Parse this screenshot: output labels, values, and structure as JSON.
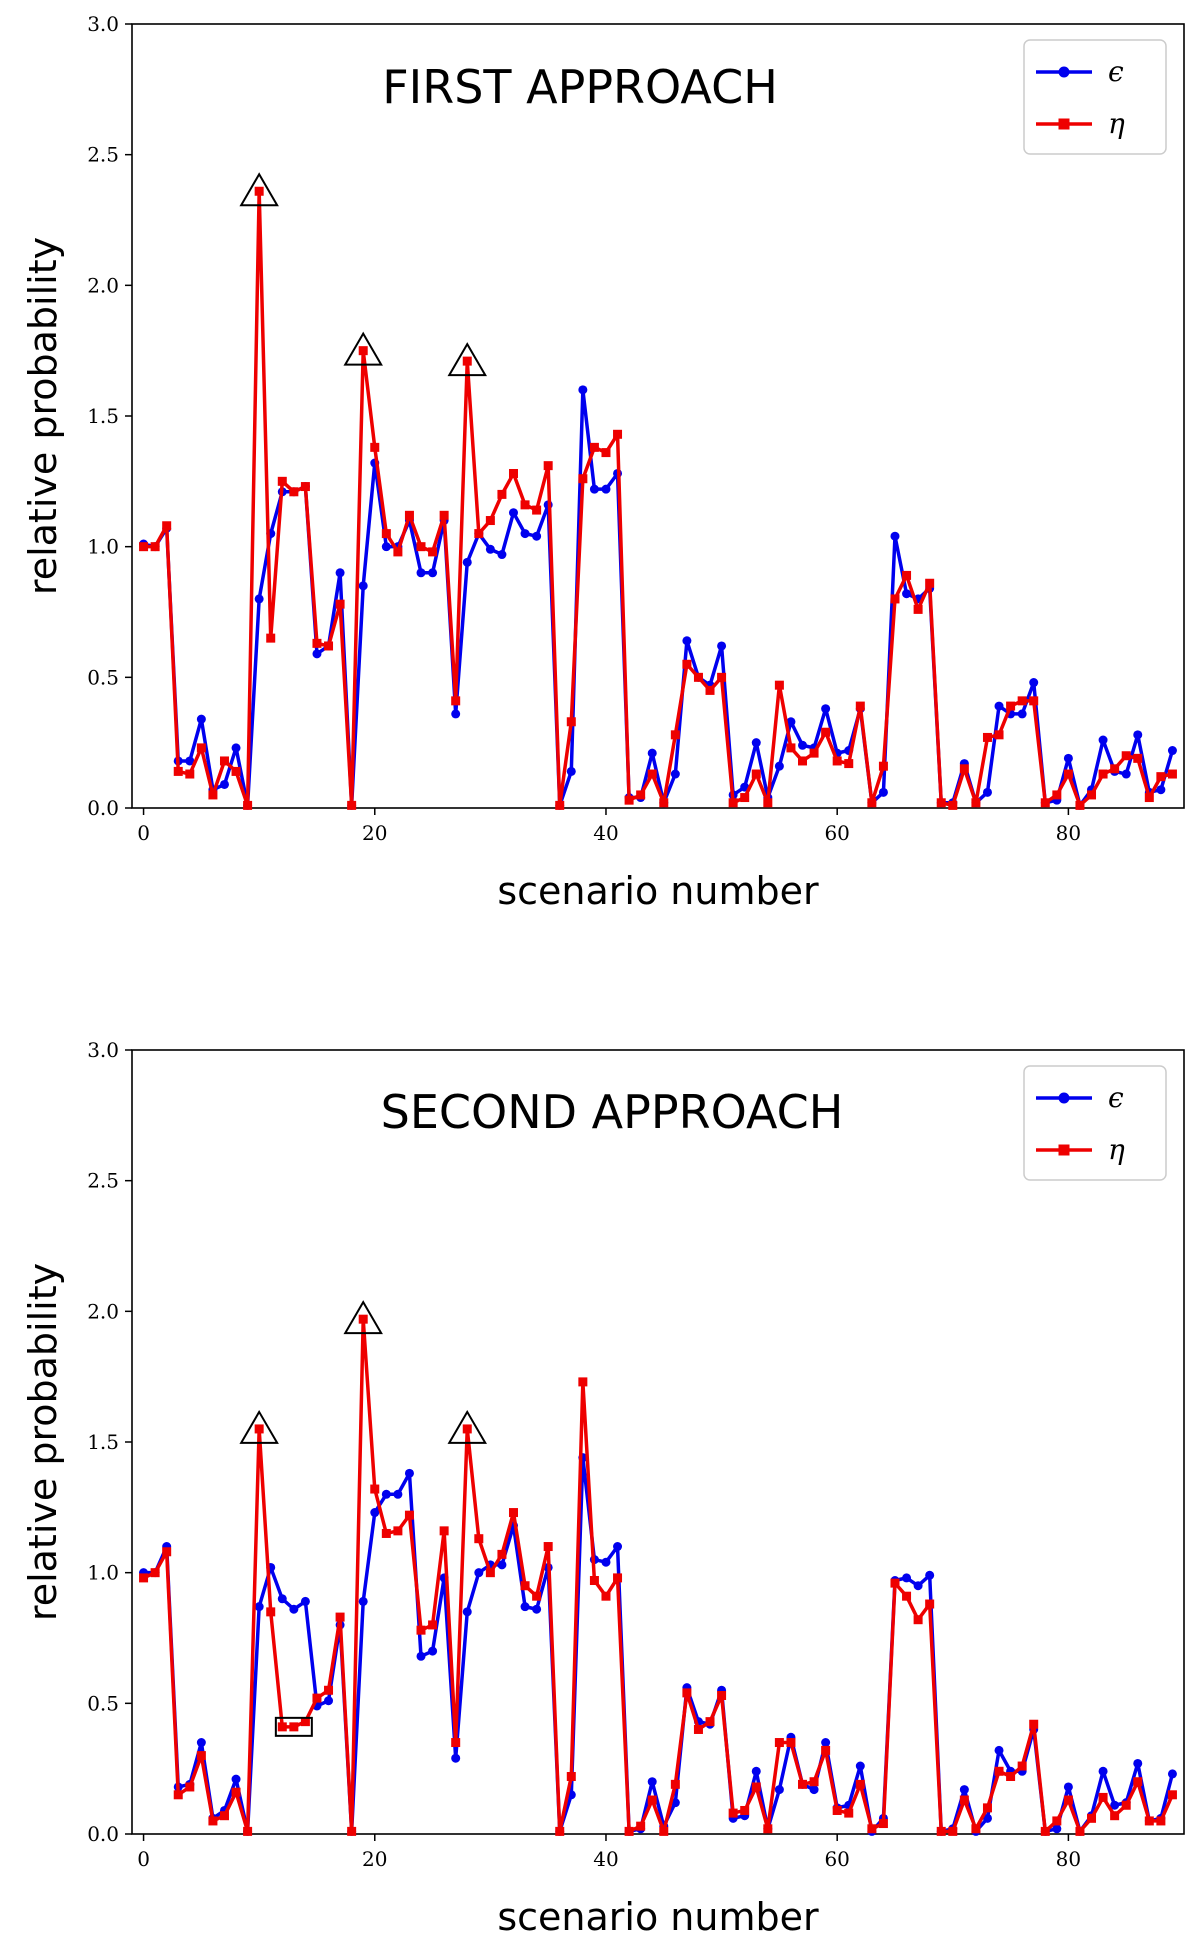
{
  "chart_data": [
    {
      "type": "line",
      "title": "FIRST APPROACH",
      "xlabel": "scenario number",
      "ylabel": "relative probability",
      "xlim": [
        -1,
        90
      ],
      "ylim": [
        0,
        3.0
      ],
      "x_ticks": [
        0,
        20,
        40,
        60,
        80
      ],
      "y_ticks": [
        0.0,
        0.5,
        1.0,
        1.5,
        2.0,
        2.5,
        3.0
      ],
      "x_tick_labels": [
        "0",
        "20",
        "40",
        "60",
        "80"
      ],
      "y_tick_labels": [
        "0.0",
        "0.5",
        "1.0",
        "1.5",
        "2.0",
        "2.5",
        "3.0"
      ],
      "legend_position": "top-right",
      "x": [
        0,
        1,
        2,
        3,
        4,
        5,
        6,
        7,
        8,
        9,
        10,
        11,
        12,
        13,
        14,
        15,
        16,
        17,
        18,
        19,
        20,
        21,
        22,
        23,
        24,
        25,
        26,
        27,
        28,
        29,
        30,
        31,
        32,
        33,
        34,
        35,
        36,
        37,
        38,
        39,
        40,
        41,
        42,
        43,
        44,
        45,
        46,
        47,
        48,
        49,
        50,
        51,
        52,
        53,
        54,
        55,
        56,
        57,
        58,
        59,
        60,
        61,
        62,
        63,
        64,
        65,
        66,
        67,
        68,
        69,
        70,
        71,
        72,
        73,
        74,
        75,
        76,
        77,
        78,
        79,
        80,
        81,
        82,
        83,
        84,
        85,
        86,
        87,
        88,
        89
      ],
      "series": [
        {
          "name": "ϵ",
          "color": "#0000ee",
          "marker": "circle",
          "values": [
            1.01,
            1.0,
            1.07,
            0.18,
            0.18,
            0.34,
            0.07,
            0.09,
            0.23,
            0.01,
            0.8,
            1.05,
            1.21,
            1.21,
            1.23,
            0.59,
            0.62,
            0.9,
            0.01,
            0.85,
            1.32,
            1.0,
            1.0,
            1.1,
            0.9,
            0.9,
            1.1,
            0.36,
            0.94,
            1.05,
            0.99,
            0.97,
            1.13,
            1.05,
            1.04,
            1.16,
            0.01,
            0.14,
            1.6,
            1.22,
            1.22,
            1.28,
            0.04,
            0.04,
            0.21,
            0.02,
            0.13,
            0.64,
            0.5,
            0.47,
            0.62,
            0.05,
            0.08,
            0.25,
            0.04,
            0.16,
            0.33,
            0.24,
            0.23,
            0.38,
            0.21,
            0.22,
            0.38,
            0.02,
            0.06,
            1.04,
            0.82,
            0.8,
            0.84,
            0.02,
            0.02,
            0.17,
            0.02,
            0.06,
            0.39,
            0.36,
            0.36,
            0.48,
            0.02,
            0.03,
            0.19,
            0.01,
            0.07,
            0.26,
            0.14,
            0.13,
            0.28,
            0.06,
            0.07,
            0.22
          ]
        },
        {
          "name": "η",
          "color": "#ee0000",
          "marker": "square",
          "values": [
            1.0,
            1.0,
            1.08,
            0.14,
            0.13,
            0.23,
            0.05,
            0.18,
            0.14,
            0.01,
            2.36,
            0.65,
            1.25,
            1.21,
            1.23,
            0.63,
            0.62,
            0.78,
            0.01,
            1.75,
            1.38,
            1.05,
            0.98,
            1.12,
            1.0,
            0.98,
            1.12,
            0.41,
            1.71,
            1.05,
            1.1,
            1.2,
            1.28,
            1.16,
            1.14,
            1.31,
            0.01,
            0.33,
            1.26,
            1.38,
            1.36,
            1.43,
            0.03,
            0.05,
            0.13,
            0.02,
            0.28,
            0.55,
            0.5,
            0.45,
            0.5,
            0.02,
            0.04,
            0.13,
            0.02,
            0.47,
            0.23,
            0.18,
            0.21,
            0.29,
            0.18,
            0.17,
            0.39,
            0.02,
            0.16,
            0.8,
            0.89,
            0.76,
            0.86,
            0.02,
            0.01,
            0.15,
            0.02,
            0.27,
            0.28,
            0.39,
            0.41,
            0.41,
            0.02,
            0.05,
            0.13,
            0.01,
            0.05,
            0.13,
            0.15,
            0.2,
            0.19,
            0.04,
            0.12,
            0.13
          ]
        }
      ],
      "annotations": [
        {
          "shape": "triangle",
          "x": 10,
          "y": 2.36
        },
        {
          "shape": "triangle",
          "x": 19,
          "y": 1.75
        },
        {
          "shape": "triangle",
          "x": 28,
          "y": 1.71
        }
      ]
    },
    {
      "type": "line",
      "title": "SECOND APPROACH",
      "xlabel": "scenario number",
      "ylabel": "relative probability",
      "xlim": [
        -1,
        90
      ],
      "ylim": [
        0,
        3.0
      ],
      "x_ticks": [
        0,
        20,
        40,
        60,
        80
      ],
      "y_ticks": [
        0.0,
        0.5,
        1.0,
        1.5,
        2.0,
        2.5,
        3.0
      ],
      "x_tick_labels": [
        "0",
        "20",
        "40",
        "60",
        "80"
      ],
      "y_tick_labels": [
        "0.0",
        "0.5",
        "1.0",
        "1.5",
        "2.0",
        "2.5",
        "3.0"
      ],
      "legend_position": "top-right",
      "x": [
        0,
        1,
        2,
        3,
        4,
        5,
        6,
        7,
        8,
        9,
        10,
        11,
        12,
        13,
        14,
        15,
        16,
        17,
        18,
        19,
        20,
        21,
        22,
        23,
        24,
        25,
        26,
        27,
        28,
        29,
        30,
        31,
        32,
        33,
        34,
        35,
        36,
        37,
        38,
        39,
        40,
        41,
        42,
        43,
        44,
        45,
        46,
        47,
        48,
        49,
        50,
        51,
        52,
        53,
        54,
        55,
        56,
        57,
        58,
        59,
        60,
        61,
        62,
        63,
        64,
        65,
        66,
        67,
        68,
        69,
        70,
        71,
        72,
        73,
        74,
        75,
        76,
        77,
        78,
        79,
        80,
        81,
        82,
        83,
        84,
        85,
        86,
        87,
        88,
        89
      ],
      "series": [
        {
          "name": "ϵ",
          "color": "#0000ee",
          "marker": "circle",
          "values": [
            1.0,
            1.0,
            1.1,
            0.18,
            0.19,
            0.35,
            0.06,
            0.09,
            0.21,
            0.01,
            0.87,
            1.02,
            0.9,
            0.86,
            0.89,
            0.49,
            0.51,
            0.8,
            0.01,
            0.89,
            1.23,
            1.3,
            1.3,
            1.38,
            0.68,
            0.7,
            0.98,
            0.29,
            0.85,
            1.0,
            1.03,
            1.03,
            1.18,
            0.87,
            0.86,
            1.02,
            0.01,
            0.15,
            1.44,
            1.05,
            1.04,
            1.1,
            0.01,
            0.02,
            0.2,
            0.03,
            0.12,
            0.56,
            0.43,
            0.42,
            0.55,
            0.06,
            0.07,
            0.24,
            0.02,
            0.17,
            0.37,
            0.19,
            0.17,
            0.35,
            0.1,
            0.11,
            0.26,
            0.01,
            0.06,
            0.97,
            0.98,
            0.95,
            0.99,
            0.01,
            0.02,
            0.17,
            0.01,
            0.06,
            0.32,
            0.24,
            0.24,
            0.4,
            0.01,
            0.02,
            0.18,
            0.01,
            0.07,
            0.24,
            0.11,
            0.12,
            0.27,
            0.05,
            0.06,
            0.23
          ]
        },
        {
          "name": "η",
          "color": "#ee0000",
          "marker": "square",
          "values": [
            0.98,
            1.0,
            1.08,
            0.15,
            0.18,
            0.3,
            0.05,
            0.07,
            0.16,
            0.01,
            1.55,
            0.85,
            0.41,
            0.41,
            0.43,
            0.52,
            0.55,
            0.83,
            0.01,
            1.97,
            1.32,
            1.15,
            1.16,
            1.22,
            0.78,
            0.8,
            1.16,
            0.35,
            1.55,
            1.13,
            1.0,
            1.07,
            1.23,
            0.95,
            0.91,
            1.1,
            0.01,
            0.22,
            1.73,
            0.97,
            0.91,
            0.98,
            0.01,
            0.03,
            0.13,
            0.01,
            0.19,
            0.54,
            0.4,
            0.43,
            0.53,
            0.08,
            0.09,
            0.18,
            0.02,
            0.35,
            0.35,
            0.19,
            0.2,
            0.32,
            0.09,
            0.08,
            0.19,
            0.02,
            0.04,
            0.96,
            0.91,
            0.82,
            0.88,
            0.01,
            0.01,
            0.13,
            0.02,
            0.1,
            0.24,
            0.22,
            0.26,
            0.42,
            0.01,
            0.05,
            0.13,
            0.01,
            0.06,
            0.14,
            0.07,
            0.11,
            0.2,
            0.05,
            0.05,
            0.15
          ]
        }
      ],
      "annotations": [
        {
          "shape": "triangle",
          "x": 10,
          "y": 1.55
        },
        {
          "shape": "triangle",
          "x": 19,
          "y": 1.97
        },
        {
          "shape": "triangle",
          "x": 28,
          "y": 1.55
        },
        {
          "shape": "square",
          "x": 13,
          "y": 0.41
        }
      ]
    }
  ]
}
